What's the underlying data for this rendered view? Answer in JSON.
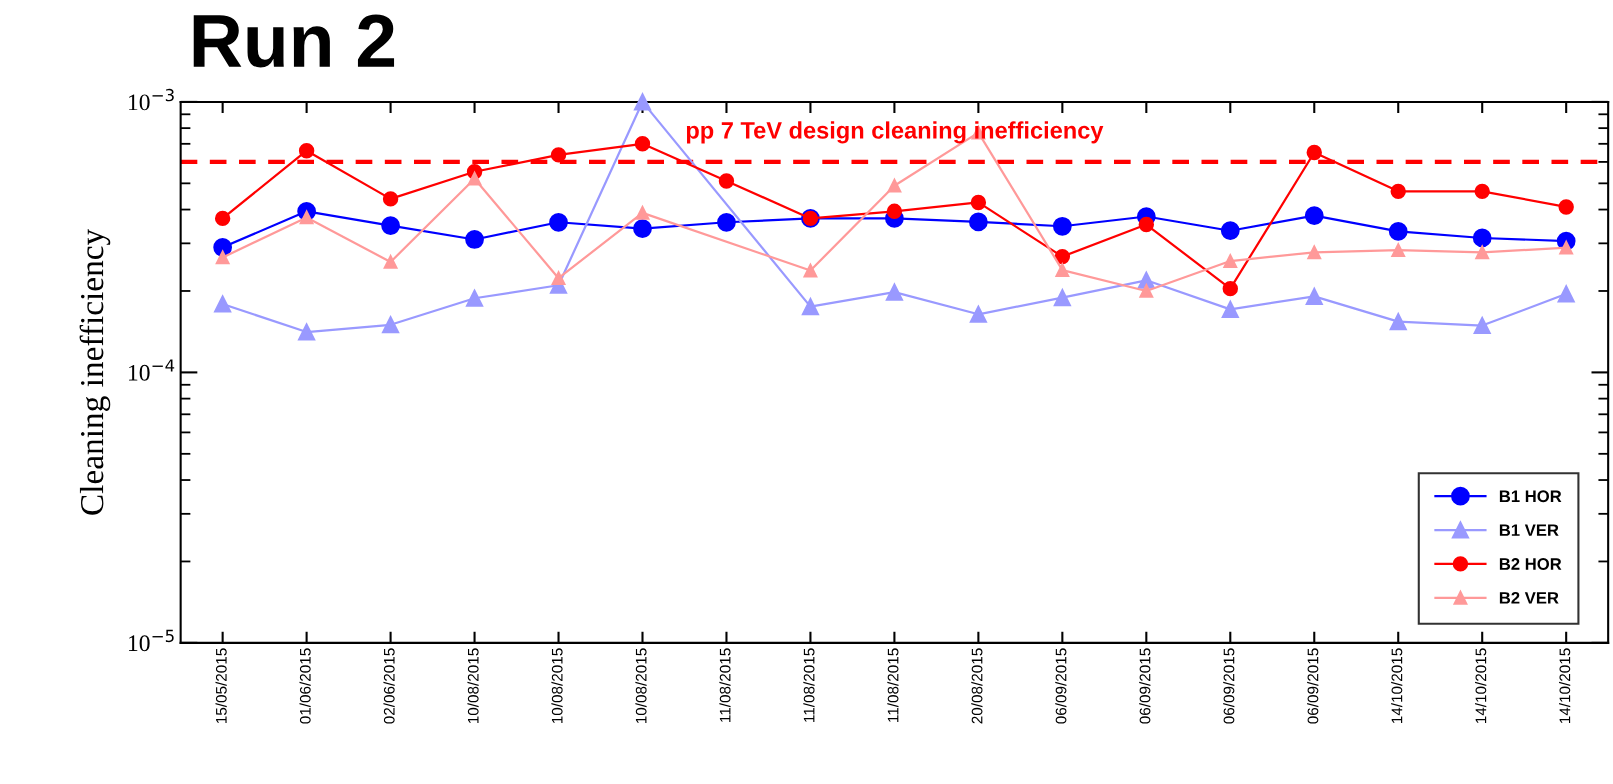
{
  "chart_data": {
    "type": "line",
    "title": "Run 2",
    "ylabel": "Cleaning inefficiency",
    "categories": [
      "15/05/2015",
      "01/06/2015",
      "02/06/2015",
      "10/08/2015",
      "10/08/2015",
      "10/08/2015",
      "11/08/2015",
      "11/08/2015",
      "11/08/2015",
      "20/08/2015",
      "06/09/2015",
      "06/09/2015",
      "06/09/2015",
      "06/09/2015",
      "14/10/2015",
      "14/10/2015",
      "14/10/2015"
    ],
    "series": [
      {
        "name": "B1 HOR",
        "color": "#0000ff",
        "marker": "circle",
        "values": [
          0.00029,
          0.000394,
          0.000349,
          0.00031,
          0.000359,
          0.00034,
          0.000359,
          0.000371,
          0.000371,
          0.00036,
          0.000347,
          0.000377,
          0.000334,
          0.00038,
          0.000332,
          0.000314,
          0.000306
        ]
      },
      {
        "name": "B1 VER",
        "color": "#9999ff",
        "marker": "triangle",
        "values": [
          0.000179,
          0.000141,
          0.00015,
          0.000188,
          0.00021,
          0.001,
          null,
          0.000175,
          0.000198,
          0.000164,
          0.000189,
          0.000219,
          0.000171,
          0.000191,
          0.000154,
          0.000149,
          0.000195
        ]
      },
      {
        "name": "B2 HOR",
        "color": "#ff0000",
        "marker": "circle",
        "values": [
          0.000371,
          0.00066,
          0.000438,
          0.000552,
          0.000637,
          0.0007,
          0.00051,
          0.000371,
          0.000394,
          0.000425,
          0.000268,
          0.000352,
          0.000204,
          0.00065,
          0.000467,
          0.000467,
          0.000409
        ]
      },
      {
        "name": "B2 VER",
        "color": "#ff9999",
        "marker": "triangle",
        "values": [
          0.000266,
          0.000374,
          0.000256,
          0.00052,
          0.000223,
          0.000389,
          null,
          0.000238,
          0.00049,
          0.00077,
          0.000239,
          0.0002,
          0.000258,
          0.000278,
          0.000283,
          0.000278,
          0.000289
        ]
      }
    ],
    "log": "y",
    "ylim": [
      1e-05,
      0.001
    ],
    "yticks": [
      {
        "value": 1e-05,
        "label": "10$^{−5}$"
      },
      {
        "value": 0.0001,
        "label": "10$^{−4}$"
      },
      {
        "value": 0.001,
        "label": "10$^{−3}$"
      }
    ],
    "ref_lines": [
      {
        "axis": "y",
        "value": 0.0006,
        "label": "pp 7 TeV design cleaning inefficiency",
        "color": "#ff0000",
        "line_style": "dashed"
      }
    ],
    "grid": false,
    "legend": "lower right",
    "line_style": "solid"
  }
}
